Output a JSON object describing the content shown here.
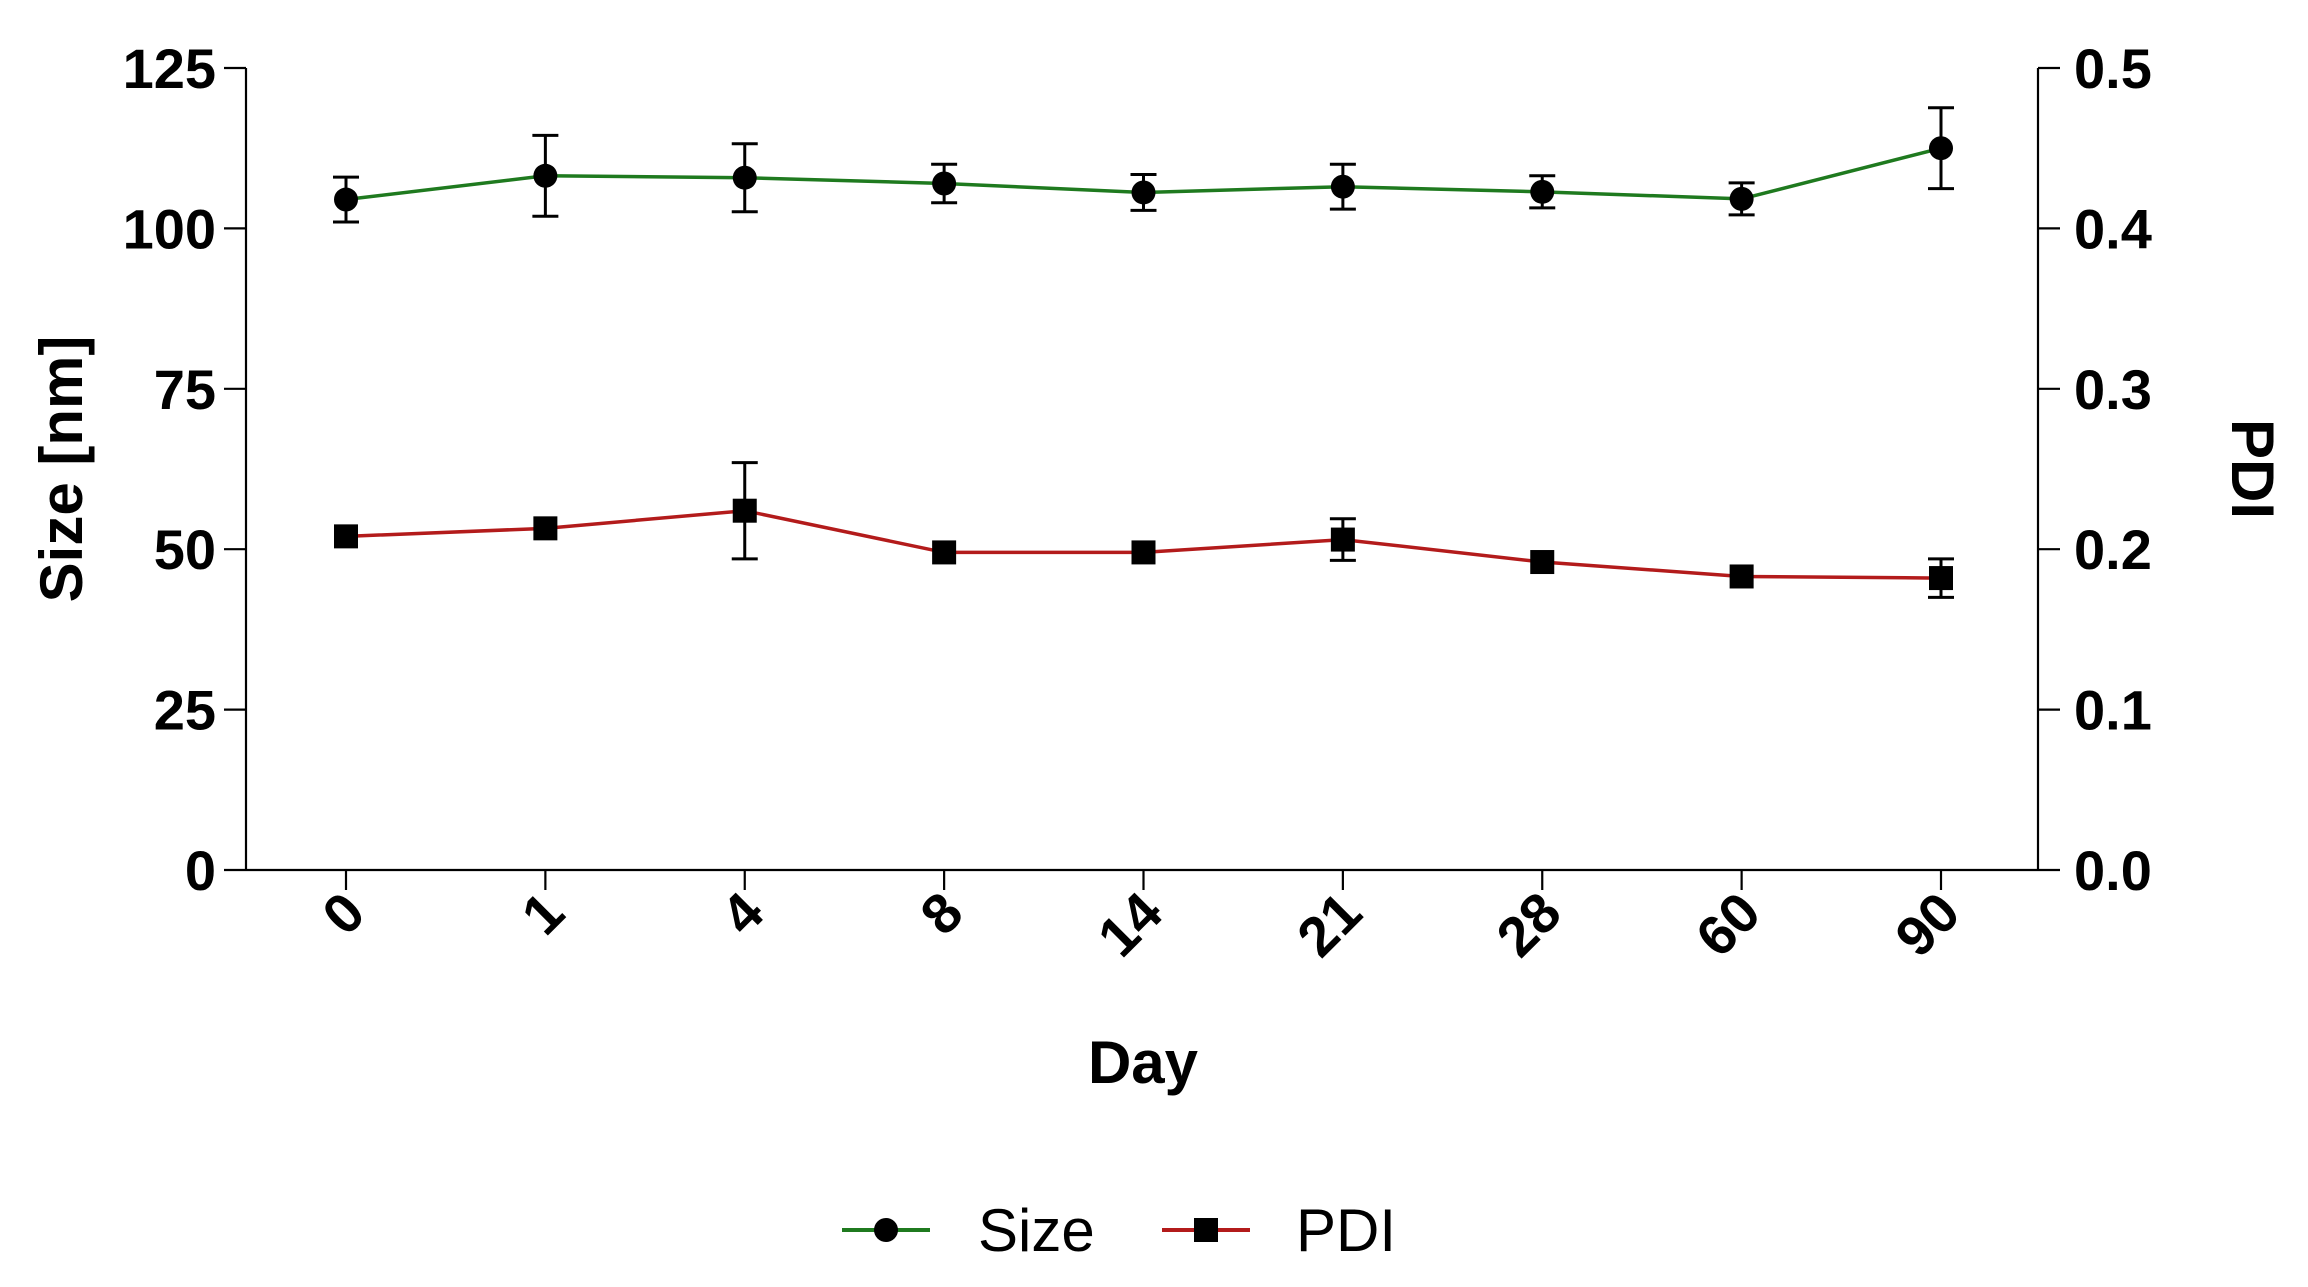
{
  "chart_data": {
    "type": "line",
    "title": "",
    "categories": [
      "0",
      "1",
      "4",
      "8",
      "14",
      "21",
      "28",
      "60",
      "90"
    ],
    "xlabel": "Day",
    "ylabel": "Size [nm]",
    "y2label": "PDI",
    "ylim": [
      0,
      125
    ],
    "y2lim": [
      0.0,
      0.5
    ],
    "yticks": [
      "0",
      "25",
      "50",
      "75",
      "100",
      "125"
    ],
    "y2ticks": [
      "0.0",
      "0.1",
      "0.2",
      "0.3",
      "0.4",
      "0.5"
    ],
    "grid": false,
    "legend_position": "bottom-center",
    "series": [
      {
        "name": "Size",
        "axis": "left",
        "color": "#1f7a1f",
        "marker": "circle",
        "values": [
          104.5,
          108.2,
          107.9,
          107.0,
          105.6,
          106.5,
          105.7,
          104.6,
          112.5
        ],
        "errors": [
          3.5,
          6.3,
          5.3,
          3.0,
          2.8,
          3.5,
          2.5,
          2.5,
          6.3
        ]
      },
      {
        "name": "PDI",
        "axis": "right",
        "color": "#b31b1b",
        "marker": "square",
        "values": [
          0.208,
          0.213,
          0.224,
          0.198,
          0.198,
          0.206,
          0.192,
          0.183,
          0.182
        ],
        "errors": [
          0.0,
          0.0,
          0.03,
          0.0,
          0.0,
          0.013,
          0.0,
          0.0,
          0.012
        ]
      }
    ]
  }
}
